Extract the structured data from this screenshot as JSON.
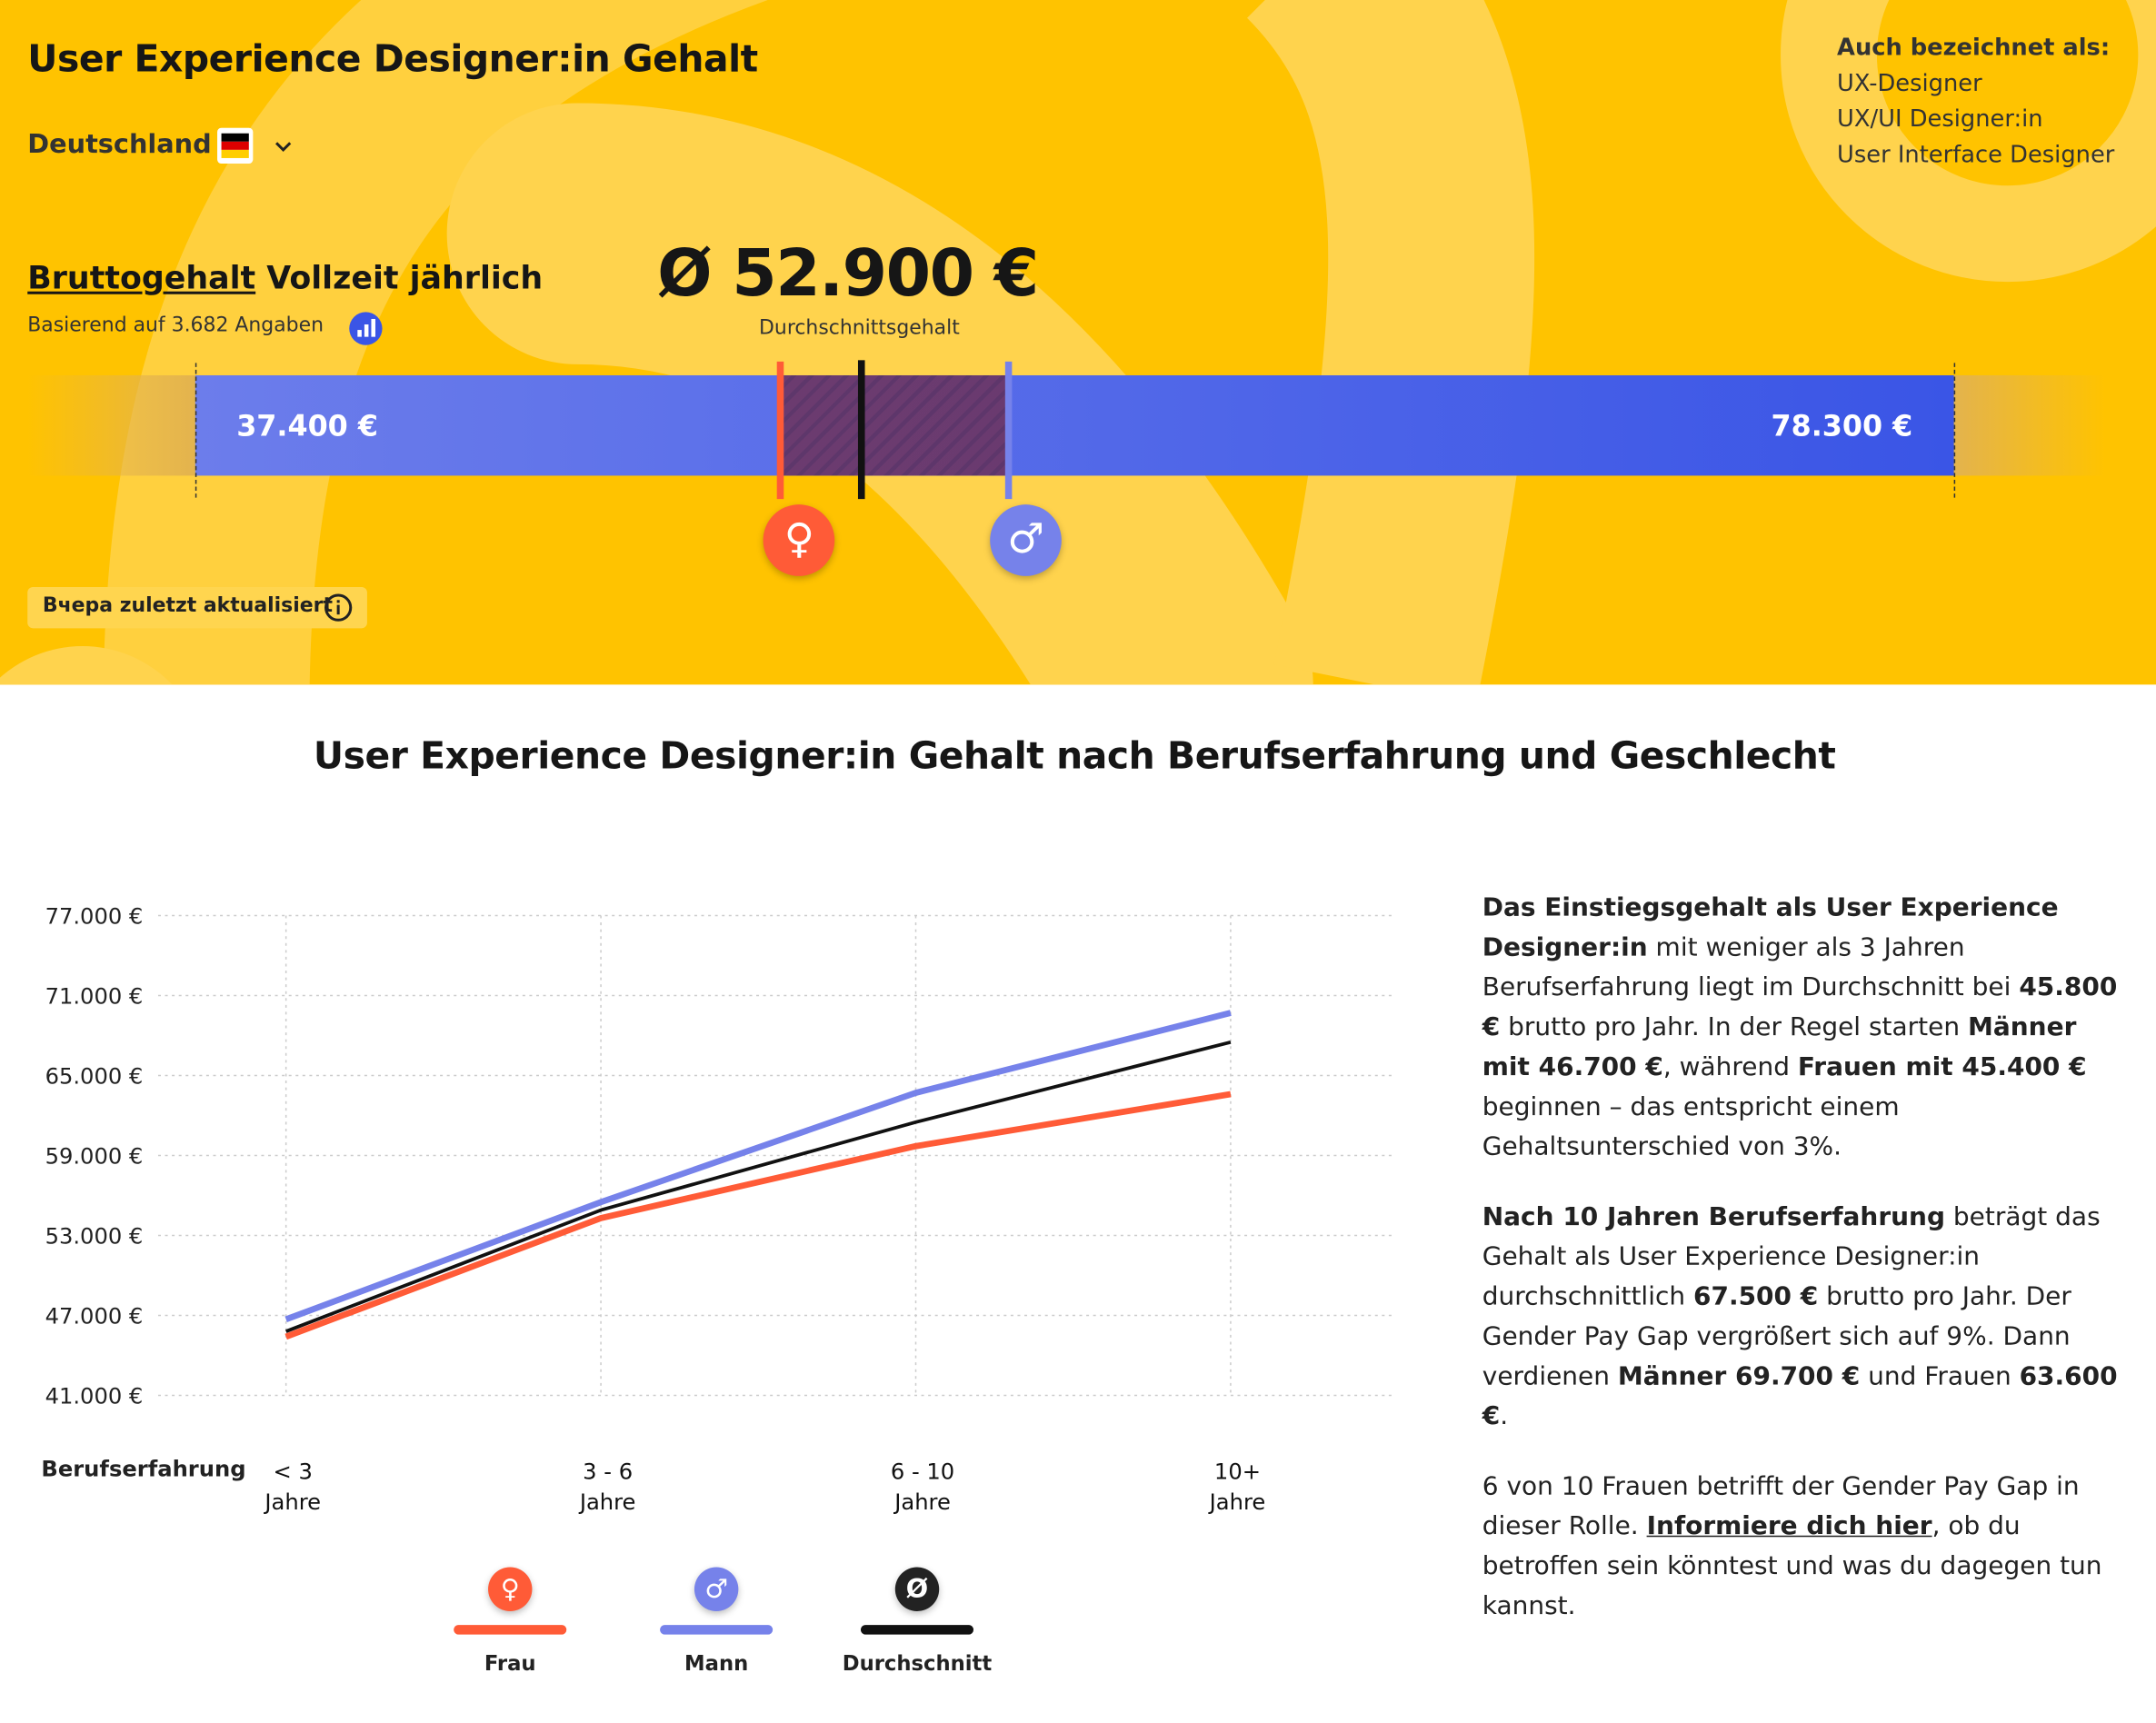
{
  "header": {
    "title": "User Experience Designer:in Gehalt",
    "country": "Deutschland",
    "aka_title": "Auch bezeichnet als:",
    "aka": [
      "UX-Designer",
      "UX/UI Designer:in",
      "User Interface Designer"
    ]
  },
  "salary": {
    "label_link": "Bruttogehalt",
    "label_rest": "Vollzeit jährlich",
    "basis": "Basierend auf 3.682 Angaben",
    "average_label": "Ø 52.900 €",
    "average_caption": "Durchschnittsgehalt",
    "average": 52900,
    "min": 37400,
    "min_label": "37.400 €",
    "max": 78300,
    "max_label": "78.300 €",
    "female": 51000,
    "male": 56300,
    "female_symbol": "♀",
    "male_symbol": "♂",
    "updated": "Вчера zuletzt aktualisiert"
  },
  "chart_data": {
    "type": "line",
    "title": "User Experience Designer:in Gehalt nach Berufserfahrung und Geschlecht",
    "x_label": "Berufserfahrung",
    "categories": [
      "< 3 Jahre",
      "3 - 6 Jahre",
      "6 - 10 Jahre",
      "10+ Jahre"
    ],
    "series": [
      {
        "name": "Frau",
        "symbol": "♀",
        "color": "#ff5b37",
        "values": [
          45400,
          54300,
          59700,
          63600
        ]
      },
      {
        "name": "Mann",
        "symbol": "♂",
        "color": "#7682ea",
        "values": [
          46700,
          55500,
          63700,
          69700
        ]
      },
      {
        "name": "Durchschnitt",
        "symbol": "Ø",
        "color": "#111111",
        "values": [
          45800,
          54900,
          61500,
          67500
        ]
      }
    ],
    "ylim": [
      41000,
      77000
    ],
    "yticks": [
      {
        "value": 41000,
        "label": "41.000 €"
      },
      {
        "value": 47000,
        "label": "47.000 €"
      },
      {
        "value": 53000,
        "label": "53.000 €"
      },
      {
        "value": 59000,
        "label": "59.000 €"
      },
      {
        "value": 65000,
        "label": "65.000 €"
      },
      {
        "value": 71000,
        "label": "71.000 €"
      },
      {
        "value": 77000,
        "label": "77.000 €"
      }
    ],
    "grid": true
  },
  "description": [
    [
      {
        "text": "Das Einstiegsgehalt als User Experience Designer:in",
        "bold": true
      },
      {
        "text": " mit weniger als 3 Jahren Berufserfahrung liegt im Durchschnitt bei "
      },
      {
        "text": "45.800 €",
        "bold": true
      },
      {
        "text": " brutto pro Jahr. In der Regel starten "
      },
      {
        "text": "Männer mit 46.700 €",
        "bold": true
      },
      {
        "text": ", während "
      },
      {
        "text": "Frauen mit 45.400 €",
        "bold": true
      },
      {
        "text": " beginnen – das entspricht einem Gehaltsunterschied von 3%."
      }
    ],
    [
      {
        "text": "Nach 10 Jahren Berufserfahrung",
        "bold": true
      },
      {
        "text": " beträgt das Gehalt als User Experience Designer:in durchschnittlich "
      },
      {
        "text": "67.500 €",
        "bold": true
      },
      {
        "text": " brutto pro Jahr. Der Gender Pay Gap vergrößert sich auf 9%. Dann verdienen "
      },
      {
        "text": "Männer 69.700 €",
        "bold": true
      },
      {
        "text": " und Frauen "
      },
      {
        "text": "63.600 €",
        "bold": true
      },
      {
        "text": "."
      }
    ],
    [
      {
        "text": "6 von 10 Frauen betrifft der Gender Pay Gap in dieser Rolle. "
      },
      {
        "text": "Informiere dich hier",
        "link": true
      },
      {
        "text": ", ob du betroffen sein könntest und was du dagegen tun kannst."
      }
    ]
  ]
}
